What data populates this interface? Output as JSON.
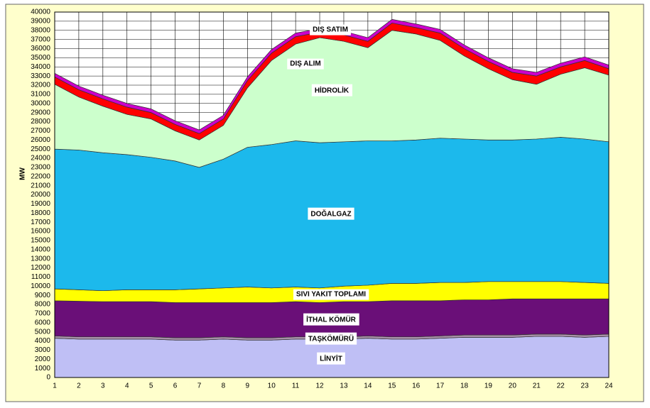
{
  "chart_data": {
    "type": "stacked_area",
    "y_label": "MW",
    "categories": [
      1,
      2,
      3,
      4,
      5,
      6,
      7,
      8,
      9,
      10,
      11,
      12,
      13,
      14,
      15,
      16,
      17,
      18,
      19,
      20,
      21,
      22,
      23,
      24
    ],
    "ylim": [
      0,
      40000
    ],
    "yticks": [
      0,
      1000,
      2000,
      3000,
      4000,
      5000,
      6000,
      7000,
      8000,
      9000,
      10000,
      11000,
      12000,
      13000,
      14000,
      15000,
      16000,
      17000,
      18000,
      19000,
      20000,
      21000,
      22000,
      23000,
      24000,
      25000,
      26000,
      27000,
      28000,
      29000,
      30000,
      31000,
      32000,
      33000,
      34000,
      35000,
      36000,
      37000,
      38000,
      39000,
      40000
    ],
    "grid": true,
    "series": [
      {
        "name": "LİNYİT",
        "color": "#bfbff5",
        "values": [
          4300,
          4200,
          4200,
          4200,
          4200,
          4100,
          4100,
          4200,
          4100,
          4100,
          4200,
          4200,
          4200,
          4300,
          4200,
          4200,
          4300,
          4400,
          4400,
          4400,
          4500,
          4500,
          4400,
          4500
        ]
      },
      {
        "name": "TAŞKÖMÜRÜ",
        "color": "#a890a8",
        "values": [
          250,
          250,
          250,
          250,
          250,
          250,
          250,
          250,
          250,
          250,
          250,
          250,
          250,
          250,
          250,
          250,
          250,
          250,
          250,
          250,
          250,
          250,
          250,
          250
        ]
      },
      {
        "name": "İTHAL KÖMÜR",
        "color": "#6a0f78",
        "values": [
          3850,
          3900,
          3850,
          3850,
          3850,
          3850,
          3850,
          3750,
          3850,
          3850,
          3850,
          3750,
          3850,
          3750,
          3950,
          3950,
          3850,
          3850,
          3850,
          3950,
          3850,
          3850,
          3950,
          3850
        ]
      },
      {
        "name": "SIVI YAKIT TOPLAMI",
        "color": "#ffff00",
        "values": [
          1300,
          1250,
          1200,
          1300,
          1300,
          1400,
          1500,
          1600,
          1700,
          1600,
          1600,
          1600,
          1700,
          1800,
          1900,
          1900,
          2000,
          1900,
          2000,
          1900,
          1900,
          1900,
          1800,
          1700
        ]
      },
      {
        "name": "DOĞALGAZ",
        "color": "#1cb9ec",
        "values": [
          15300,
          15300,
          15100,
          14800,
          14500,
          14100,
          13300,
          14100,
          15300,
          15700,
          16000,
          15900,
          15800,
          15800,
          15600,
          15700,
          15800,
          15700,
          15500,
          15500,
          15600,
          15800,
          15700,
          15500
        ]
      },
      {
        "name": "HİDROLİK",
        "color": "#ccffcc",
        "values": [
          7100,
          5800,
          5100,
          4400,
          4200,
          3300,
          3000,
          3700,
          6500,
          9200,
          10600,
          11500,
          11000,
          10200,
          12100,
          11600,
          10700,
          9100,
          7800,
          6600,
          6000,
          6900,
          7800,
          7300
        ]
      },
      {
        "name": "DIŞ ALIM",
        "color": "#ff0000",
        "values": [
          800,
          800,
          800,
          800,
          700,
          700,
          700,
          700,
          800,
          800,
          800,
          600,
          700,
          700,
          800,
          700,
          800,
          800,
          800,
          800,
          900,
          800,
          800,
          700
        ]
      },
      {
        "name": "DIŞ SATIM",
        "color": "#cc00cc",
        "values": [
          400,
          400,
          400,
          400,
          400,
          400,
          400,
          400,
          400,
          400,
          400,
          400,
          400,
          400,
          400,
          400,
          400,
          400,
          400,
          400,
          400,
          400,
          400,
          400
        ]
      }
    ]
  }
}
